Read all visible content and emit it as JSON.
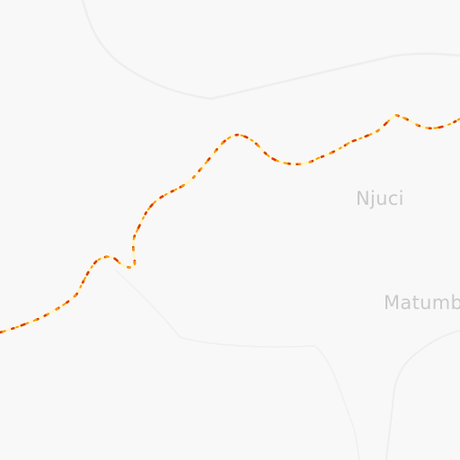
{
  "map": {
    "places": [
      {
        "id": "njuci",
        "label": "Njuci"
      },
      {
        "id": "matumbi",
        "label": "Matumbi"
      }
    ],
    "colors": {
      "background": "#f8f8f8",
      "road": "#eeeeee",
      "boundary": "#ececec",
      "route_base": "#fff3b0",
      "route_hot": "#e03a00",
      "route_warm": "#ff9a00",
      "label": "#c9c9c9"
    }
  }
}
